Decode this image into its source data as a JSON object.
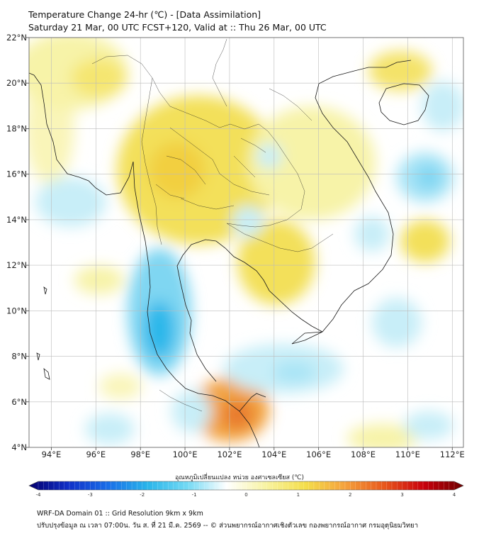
{
  "header": {
    "title_line1": "Temperature Change 24-hr (℃) - [Data Assimilation]",
    "title_line2": "Saturday 21 Mar, 00 UTC FCST+120, Valid at :: Thu 26 Mar, 00 UTC"
  },
  "map": {
    "lat_range": [
      4,
      22
    ],
    "lon_range": [
      93,
      112.5
    ],
    "lat_ticks": [
      "4°N",
      "6°N",
      "8°N",
      "10°N",
      "12°N",
      "14°N",
      "16°N",
      "18°N",
      "20°N",
      "22°N"
    ],
    "lon_ticks": [
      "94°E",
      "96°E",
      "98°E",
      "100°E",
      "102°E",
      "104°E",
      "106°E",
      "108°E",
      "110°E",
      "112°E"
    ],
    "grid": true,
    "coastline_color": "#1a1a1a",
    "colors": {
      "warm_light": "#f7f3a8",
      "warm_mid": "#f3e05a",
      "warm_strong": "#f2a340",
      "warm_peak": "#e8792d",
      "cool_light": "#c8eef8",
      "cool_mid": "#7fd6f2",
      "cool_strong": "#29b7ea"
    }
  },
  "colorbar": {
    "title": "อุณหภูมิเปลี่ยนแปลง หน่วย องศาเซลเซียส (℃)",
    "min": -4,
    "max": 4,
    "ticks": [
      "-4",
      "-3",
      "-2",
      "-1",
      "0",
      "1",
      "2",
      "3",
      "4"
    ],
    "gradient": [
      "#05006e",
      "#1030c8",
      "#1a6ee8",
      "#29b5ea",
      "#72d9f4",
      "#ffffff",
      "#f8f3a2",
      "#f4de4a",
      "#f5a13c",
      "#e8571c",
      "#c8000c",
      "#6e0000"
    ]
  },
  "footer": {
    "line1": "WRF-DA Domain 01 :: Grid Resolution 9km x 9km",
    "line2": "ปรับปรุงข้อมูล ณ เวลา 07:00น. วัน ส. ที่ 21 มี.ค. 2569 -- © ส่วนพยากรณ์อากาศเชิงตัวเลข กองพยากรณ์อากาศ กรมอุตุนิยมวิทยา"
  }
}
